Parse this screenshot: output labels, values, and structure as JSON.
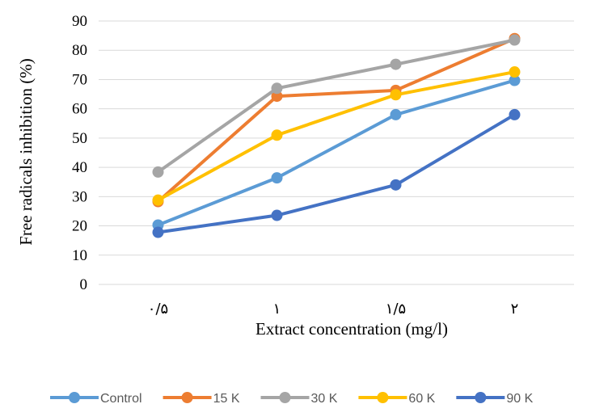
{
  "chart_data": {
    "type": "line",
    "categories": [
      "٠/۵",
      "١",
      "١/۵",
      "٢"
    ],
    "xlabel": "Extract concentration (mg/l)",
    "ylabel": "Free radicals inhibition (%)",
    "ylim": [
      0,
      90
    ],
    "yticks": [
      0,
      10,
      20,
      30,
      40,
      50,
      60,
      70,
      80,
      90
    ],
    "grid": "horizontal",
    "legend_position": "bottom",
    "series": [
      {
        "name": "Control",
        "color": "#5B9BD5",
        "values": [
          20.3,
          36.4,
          58.0,
          69.7
        ]
      },
      {
        "name": "15 K",
        "color": "#ED7D31",
        "values": [
          28.3,
          64.3,
          66.3,
          84.0
        ]
      },
      {
        "name": "30 K",
        "color": "#A5A5A5",
        "values": [
          38.4,
          67.0,
          75.2,
          83.5
        ]
      },
      {
        "name": "60 K",
        "color": "#FFC000",
        "values": [
          28.8,
          51.0,
          64.8,
          72.6
        ]
      },
      {
        "name": "90 K",
        "color": "#4472C4",
        "values": [
          17.8,
          23.6,
          34.0,
          58.0
        ]
      }
    ]
  }
}
